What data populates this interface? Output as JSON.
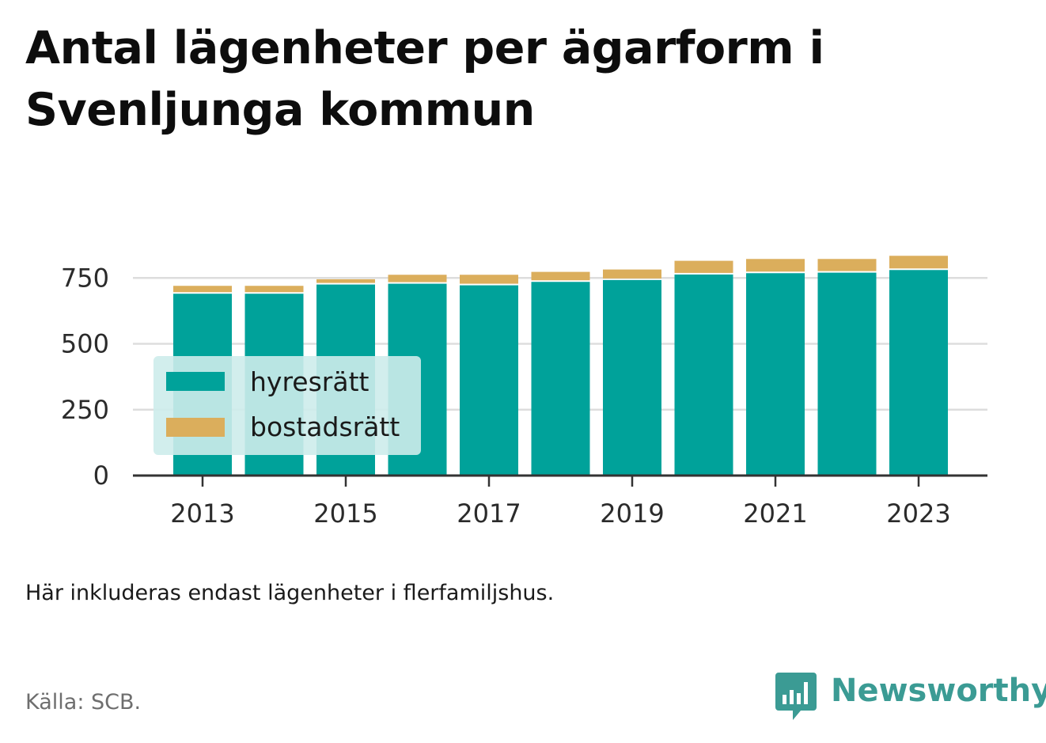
{
  "title": "Antal lägenheter per ägarform i Svenljunga kommun",
  "note": "Här inkluderas endast lägenheter i flerfamiljshus.",
  "source": "Källa: SCB.",
  "brand": "Newsworthy",
  "colors": {
    "hyresratt": "#00a29a",
    "bostadsratt": "#dbae5c",
    "legend_bg": "#cdeceb",
    "grid": "#dddddd",
    "axis": "#333333",
    "brand": "#3b9b94"
  },
  "chart_data": {
    "type": "bar",
    "stacked": true,
    "categories": [
      "2013",
      "2014",
      "2015",
      "2016",
      "2017",
      "2018",
      "2019",
      "2020",
      "2021",
      "2022",
      "2023"
    ],
    "series": [
      {
        "name": "hyresrätt",
        "values": [
          690,
          690,
          725,
          728,
          722,
          735,
          742,
          763,
          768,
          770,
          780
        ]
      },
      {
        "name": "bostadsrätt",
        "values": [
          30,
          30,
          20,
          34,
          40,
          38,
          40,
          52,
          54,
          52,
          54
        ]
      }
    ],
    "x_tick_labels": [
      "2013",
      "2015",
      "2017",
      "2019",
      "2021",
      "2023"
    ],
    "y_ticks": [
      0,
      250,
      500,
      750
    ],
    "ylim": [
      0,
      900
    ],
    "grid": true,
    "legend": "bottom-left"
  }
}
